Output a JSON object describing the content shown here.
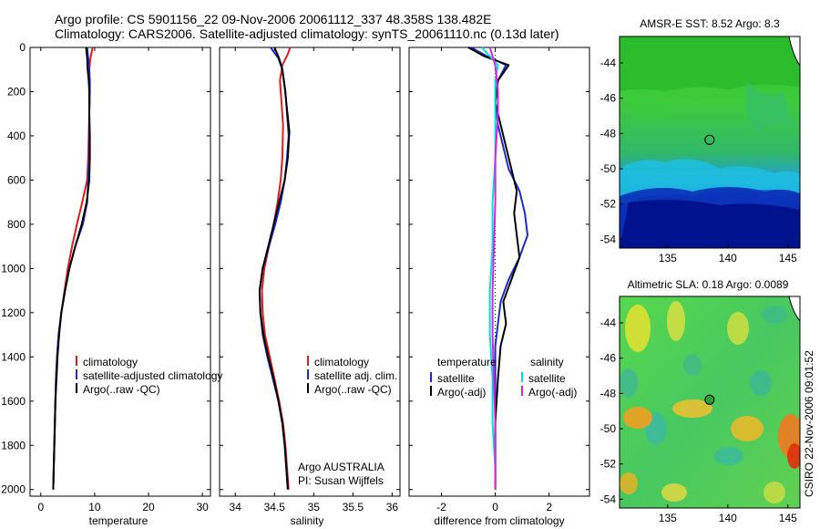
{
  "title": {
    "line1": "Argo profile: CS 5901156_22 09-Nov-2006 20061112_337 48.358S 138.482E",
    "line2": "Climatology: CARS2006. Satellite-adjusted climatology: synTS_20061110.nc (0.13d later)"
  },
  "credit": "CSIRO 22-Nov-2006 09:01:52",
  "annotation": {
    "line1": "Argo AUSTRALIA",
    "line2": "PI: Susan Wijffels"
  },
  "colors": {
    "climatology": "#e41a1c",
    "satellite": "#1a2bd6",
    "argo": "#000000",
    "sal_satellite": "#00e0e0",
    "sal_argo": "#e020e0"
  },
  "chart_data": [
    {
      "id": "temperature",
      "type": "line",
      "xlabel": "temperature",
      "xlim": [
        -2,
        31.5
      ],
      "ylim": [
        2030,
        0
      ],
      "y_reversed": true,
      "xticks": [
        0,
        10,
        20,
        30
      ],
      "yticks": [
        0,
        200,
        400,
        600,
        800,
        1000,
        1200,
        1400,
        1600,
        1800,
        2000
      ],
      "legend": {
        "placement": "lower-right",
        "entries": [
          {
            "key": "climatology",
            "label": "climatology"
          },
          {
            "key": "satellite",
            "label": "satellite-adjusted climatology"
          },
          {
            "key": "argo",
            "label": "Argo(..raw -QC)"
          }
        ]
      },
      "series": [
        {
          "name": "climatology",
          "color_key": "climatology",
          "points": [
            [
              9.6,
              0
            ],
            [
              9.2,
              50
            ],
            [
              9.0,
              100
            ],
            [
              9.0,
              150
            ],
            [
              9.1,
              200
            ],
            [
              9.0,
              300
            ],
            [
              8.9,
              400
            ],
            [
              8.8,
              500
            ],
            [
              8.6,
              600
            ],
            [
              7.7,
              700
            ],
            [
              6.7,
              800
            ],
            [
              5.8,
              900
            ],
            [
              5.0,
              1000
            ],
            [
              4.4,
              1100
            ],
            [
              3.8,
              1200
            ],
            [
              3.3,
              1300
            ],
            [
              3.0,
              1400
            ],
            [
              2.8,
              1500
            ],
            [
              2.7,
              1600
            ],
            [
              2.6,
              1700
            ],
            [
              2.5,
              1800
            ],
            [
              2.4,
              1900
            ],
            [
              2.3,
              2000
            ]
          ]
        },
        {
          "name": "satellite-adjusted climatology",
          "color_key": "satellite",
          "points": [
            [
              8.6,
              0
            ],
            [
              8.8,
              50
            ],
            [
              9.0,
              100
            ],
            [
              9.1,
              150
            ],
            [
              9.1,
              200
            ],
            [
              9.0,
              300
            ],
            [
              9.0,
              400
            ],
            [
              9.0,
              500
            ],
            [
              8.8,
              600
            ],
            [
              8.6,
              700
            ],
            [
              7.8,
              800
            ],
            [
              6.4,
              900
            ],
            [
              5.3,
              1000
            ],
            [
              4.5,
              1100
            ],
            [
              3.8,
              1200
            ],
            [
              3.3,
              1300
            ],
            [
              3.0,
              1400
            ],
            [
              2.8,
              1500
            ],
            [
              2.7,
              1600
            ],
            [
              2.6,
              1700
            ],
            [
              2.5,
              1800
            ],
            [
              2.4,
              1900
            ],
            [
              2.3,
              2000
            ]
          ]
        },
        {
          "name": "Argo(..raw -QC)",
          "color_key": "argo",
          "points": [
            [
              8.4,
              0
            ],
            [
              8.6,
              50
            ],
            [
              8.7,
              100
            ],
            [
              8.9,
              150
            ],
            [
              9.0,
              200
            ],
            [
              9.0,
              300
            ],
            [
              9.1,
              400
            ],
            [
              9.1,
              500
            ],
            [
              9.0,
              600
            ],
            [
              8.5,
              700
            ],
            [
              7.6,
              800
            ],
            [
              6.4,
              900
            ],
            [
              5.3,
              1000
            ],
            [
              4.5,
              1100
            ],
            [
              3.8,
              1200
            ],
            [
              3.4,
              1300
            ],
            [
              3.1,
              1400
            ],
            [
              2.9,
              1500
            ],
            [
              2.7,
              1600
            ],
            [
              2.6,
              1700
            ],
            [
              2.5,
              1800
            ],
            [
              2.4,
              1900
            ],
            [
              2.3,
              2000
            ]
          ]
        }
      ]
    },
    {
      "id": "salinity",
      "type": "line",
      "xlabel": "salinity",
      "xlim": [
        33.8,
        36.1
      ],
      "ylim": [
        2030,
        0
      ],
      "y_reversed": true,
      "xticks": [
        34,
        34.5,
        35,
        35.5,
        36
      ],
      "yticks": [
        0,
        200,
        400,
        600,
        800,
        1000,
        1200,
        1400,
        1600,
        1800,
        2000
      ],
      "legend": {
        "placement": "lower-right",
        "entries": [
          {
            "key": "climatology",
            "label": "climatology"
          },
          {
            "key": "satellite",
            "label": "satellite adj. clim."
          },
          {
            "key": "argo",
            "label": "Argo(..raw -QC)"
          }
        ]
      },
      "series": [
        {
          "name": "climatology",
          "color_key": "climatology",
          "points": [
            [
              34.7,
              0
            ],
            [
              34.67,
              30
            ],
            [
              34.6,
              80
            ],
            [
              34.57,
              150
            ],
            [
              34.59,
              250
            ],
            [
              34.61,
              350
            ],
            [
              34.6,
              500
            ],
            [
              34.58,
              600
            ],
            [
              34.54,
              700
            ],
            [
              34.49,
              800
            ],
            [
              34.43,
              900
            ],
            [
              34.37,
              1000
            ],
            [
              34.34,
              1100
            ],
            [
              34.35,
              1200
            ],
            [
              34.38,
              1300
            ],
            [
              34.44,
              1400
            ],
            [
              34.5,
              1500
            ],
            [
              34.56,
              1600
            ],
            [
              34.61,
              1700
            ],
            [
              34.64,
              1800
            ],
            [
              34.66,
              1900
            ],
            [
              34.68,
              2000
            ]
          ]
        },
        {
          "name": "satellite adj. clim.",
          "color_key": "satellite",
          "points": [
            [
              34.45,
              0
            ],
            [
              34.55,
              50
            ],
            [
              34.6,
              100
            ],
            [
              34.64,
              200
            ],
            [
              34.66,
              300
            ],
            [
              34.68,
              400
            ],
            [
              34.66,
              500
            ],
            [
              34.63,
              600
            ],
            [
              34.58,
              700
            ],
            [
              34.51,
              800
            ],
            [
              34.43,
              900
            ],
            [
              34.35,
              1000
            ],
            [
              34.31,
              1100
            ],
            [
              34.32,
              1200
            ],
            [
              34.35,
              1300
            ],
            [
              34.41,
              1400
            ],
            [
              34.48,
              1500
            ],
            [
              34.55,
              1600
            ],
            [
              34.6,
              1700
            ],
            [
              34.63,
              1800
            ],
            [
              34.65,
              1900
            ],
            [
              34.67,
              2000
            ]
          ]
        },
        {
          "name": "Argo(..raw -QC)",
          "color_key": "argo",
          "points": [
            [
              34.5,
              0
            ],
            [
              34.56,
              50
            ],
            [
              34.6,
              100
            ],
            [
              34.63,
              180
            ],
            [
              34.66,
              280
            ],
            [
              34.69,
              380
            ],
            [
              34.67,
              500
            ],
            [
              34.63,
              600
            ],
            [
              34.56,
              700
            ],
            [
              34.49,
              800
            ],
            [
              34.42,
              900
            ],
            [
              34.35,
              1000
            ],
            [
              34.31,
              1100
            ],
            [
              34.32,
              1200
            ],
            [
              34.36,
              1300
            ],
            [
              34.42,
              1400
            ],
            [
              34.49,
              1500
            ],
            [
              34.55,
              1600
            ],
            [
              34.6,
              1700
            ],
            [
              34.63,
              1800
            ],
            [
              34.65,
              1900
            ],
            [
              34.67,
              2000
            ]
          ]
        }
      ]
    },
    {
      "id": "difference",
      "type": "line",
      "xlabel": "difference from climatology",
      "xlim": [
        -3.2,
        3.5
      ],
      "ylim": [
        2030,
        0
      ],
      "y_reversed": true,
      "xticks": [
        -2,
        0,
        2
      ],
      "yticks": [
        0,
        200,
        400,
        600,
        800,
        1000,
        1200,
        1400,
        1600,
        1800,
        2000
      ],
      "zero_line": true,
      "legend": {
        "placement": "lower",
        "groups": [
          {
            "heading": "temperature",
            "entries": [
              {
                "key": "satellite",
                "label": "satellite"
              },
              {
                "key": "argo",
                "label": "Argo(-adj)"
              }
            ]
          },
          {
            "heading": "salinity",
            "entries": [
              {
                "key": "sal_satellite",
                "label": "satellite"
              },
              {
                "key": "sal_argo",
                "label": "Argo(-adj)"
              }
            ]
          }
        ]
      },
      "series": [
        {
          "name": "temperature satellite",
          "color_key": "satellite",
          "points": [
            [
              -0.9,
              0
            ],
            [
              -0.3,
              40
            ],
            [
              0.4,
              80
            ],
            [
              0.1,
              150
            ],
            [
              0.0,
              250
            ],
            [
              0.1,
              350
            ],
            [
              0.3,
              450
            ],
            [
              0.5,
              550
            ],
            [
              0.9,
              650
            ],
            [
              1.1,
              750
            ],
            [
              1.2,
              850
            ],
            [
              0.9,
              950
            ],
            [
              0.5,
              1050
            ],
            [
              0.2,
              1150
            ],
            [
              0.1,
              1250
            ],
            [
              0.0,
              1350
            ],
            [
              0.0,
              1500
            ],
            [
              0.0,
              1700
            ],
            [
              0.0,
              1900
            ],
            [
              0.0,
              2000
            ]
          ]
        },
        {
          "name": "temperature Argo(-adj)",
          "color_key": "argo",
          "points": [
            [
              -1.0,
              0
            ],
            [
              -0.4,
              40
            ],
            [
              0.5,
              80
            ],
            [
              0.1,
              150
            ],
            [
              0.0,
              250
            ],
            [
              0.2,
              350
            ],
            [
              0.4,
              450
            ],
            [
              0.6,
              550
            ],
            [
              0.8,
              650
            ],
            [
              0.7,
              750
            ],
            [
              0.8,
              850
            ],
            [
              0.9,
              950
            ],
            [
              0.6,
              1050
            ],
            [
              0.3,
              1150
            ],
            [
              0.4,
              1250
            ],
            [
              0.2,
              1350
            ],
            [
              0.1,
              1500
            ],
            [
              0.0,
              1700
            ],
            [
              0.0,
              1900
            ],
            [
              0.0,
              2000
            ]
          ]
        },
        {
          "name": "salinity satellite",
          "color_key": "sal_satellite",
          "points": [
            [
              -0.5,
              0
            ],
            [
              -0.2,
              40
            ],
            [
              0.1,
              80
            ],
            [
              0.0,
              150
            ],
            [
              0.0,
              300
            ],
            [
              0.0,
              500
            ],
            [
              -0.1,
              700
            ],
            [
              -0.1,
              900
            ],
            [
              -0.2,
              1100
            ],
            [
              -0.2,
              1300
            ],
            [
              -0.1,
              1500
            ],
            [
              -0.1,
              1700
            ],
            [
              0.0,
              1900
            ],
            [
              0.0,
              2000
            ]
          ]
        },
        {
          "name": "salinity Argo(-adj)",
          "color_key": "sal_argo",
          "points": [
            [
              -0.2,
              0
            ],
            [
              -0.1,
              40
            ],
            [
              0.0,
              80
            ],
            [
              0.1,
              200
            ],
            [
              0.1,
              300
            ],
            [
              0.0,
              500
            ],
            [
              0.0,
              700
            ],
            [
              -0.05,
              900
            ],
            [
              -0.1,
              1100
            ],
            [
              -0.1,
              1300
            ],
            [
              -0.05,
              1500
            ],
            [
              0.0,
              1700
            ],
            [
              0.0,
              2000
            ]
          ]
        }
      ]
    },
    {
      "id": "sst_map",
      "type": "heatmap",
      "title": "AMSR-E SST: 8.52 Argo: 8.3",
      "xlim": [
        131,
        146
      ],
      "ylim": [
        -54.5,
        -42.5
      ],
      "xticks": [
        135,
        140,
        145
      ],
      "yticks": [
        -44,
        -46,
        -48,
        -50,
        -52,
        -54
      ],
      "marker": {
        "lon": 138.482,
        "lat": -48.358
      }
    },
    {
      "id": "sla_map",
      "type": "heatmap",
      "title": "Altimetric SLA: 0.18 Argo: 0.0089",
      "xlim": [
        131,
        146
      ],
      "ylim": [
        -54.5,
        -42.5
      ],
      "xticks": [
        135,
        140,
        145
      ],
      "yticks": [
        -44,
        -46,
        -48,
        -50,
        -52,
        -54
      ],
      "marker": {
        "lon": 138.482,
        "lat": -48.358
      }
    }
  ]
}
